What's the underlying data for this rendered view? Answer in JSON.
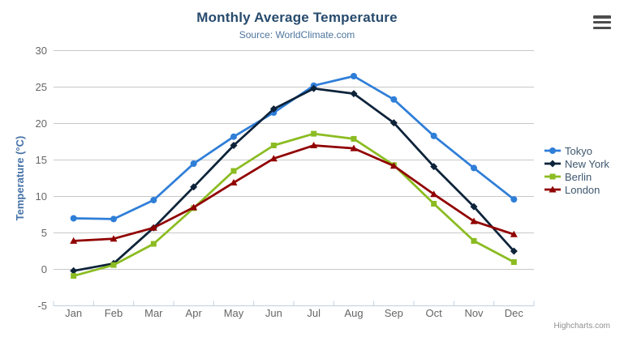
{
  "header": {
    "title": "Monthly Average Temperature",
    "subtitle": "Source: WorldClimate.com"
  },
  "credit": {
    "label": "Highcharts.com"
  },
  "export_menu": {
    "icon": "hamburger-icon"
  },
  "chart_data": {
    "type": "line",
    "title": "Monthly Average Temperature",
    "subtitle": "Source: WorldClimate.com",
    "categories": [
      "Jan",
      "Feb",
      "Mar",
      "Apr",
      "May",
      "Jun",
      "Jul",
      "Aug",
      "Sep",
      "Oct",
      "Nov",
      "Dec"
    ],
    "series": [
      {
        "name": "Tokyo",
        "color": "#2f7ed8",
        "marker": "circle",
        "values": [
          7.0,
          6.9,
          9.5,
          14.5,
          18.2,
          21.5,
          25.2,
          26.5,
          23.3,
          18.3,
          13.9,
          9.6
        ]
      },
      {
        "name": "New York",
        "color": "#0d233a",
        "marker": "diamond",
        "values": [
          -0.2,
          0.8,
          5.7,
          11.3,
          17.0,
          22.0,
          24.8,
          24.1,
          20.1,
          14.1,
          8.6,
          2.5
        ]
      },
      {
        "name": "Berlin",
        "color": "#8bbc21",
        "marker": "square",
        "values": [
          -0.9,
          0.6,
          3.5,
          8.4,
          13.5,
          17.0,
          18.6,
          17.9,
          14.3,
          9.0,
          3.9,
          1.0
        ]
      },
      {
        "name": "London",
        "color": "#910000",
        "marker": "triangle",
        "values": [
          3.9,
          4.2,
          5.7,
          8.5,
          11.9,
          15.2,
          17.0,
          16.6,
          14.2,
          10.3,
          6.6,
          4.8
        ]
      }
    ],
    "xlabel": "",
    "ylabel": "Temperature (°C)",
    "ylim": [
      -5,
      30
    ],
    "ytick_step": 5,
    "yticks": [
      -5,
      0,
      5,
      10,
      15,
      20,
      25,
      30
    ],
    "grid": true,
    "legend_position": "right",
    "colors": {
      "title": "#274b6d",
      "subtitle": "#4d759e",
      "axis_title": "#4572A7",
      "axis_labels": "#666666",
      "gridline": "#C8C8C8",
      "axis_line": "#C0D0E0",
      "legend_text": "#3E576F",
      "credit_text": "#909090"
    }
  }
}
